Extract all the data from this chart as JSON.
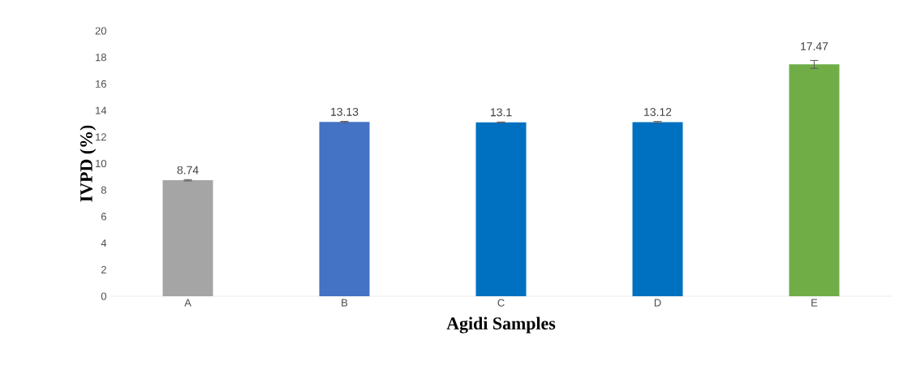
{
  "chart_data": {
    "type": "bar",
    "xlabel": "Agidi Samples",
    "ylabel": "IVPD (%)",
    "categories": [
      "A",
      "B",
      "C",
      "D",
      "E"
    ],
    "values": [
      8.74,
      13.13,
      13.1,
      13.12,
      17.47
    ],
    "errors": [
      0.05,
      0.05,
      0.03,
      0.05,
      0.3
    ],
    "colors": [
      "#a5a5a5",
      "#4472c4",
      "#0070c0",
      "#0070c0",
      "#70ad47"
    ],
    "ylim": [
      0,
      20
    ],
    "yticks": [
      0,
      2,
      4,
      6,
      8,
      10,
      12,
      14,
      16,
      18,
      20
    ],
    "data_labels": true
  }
}
